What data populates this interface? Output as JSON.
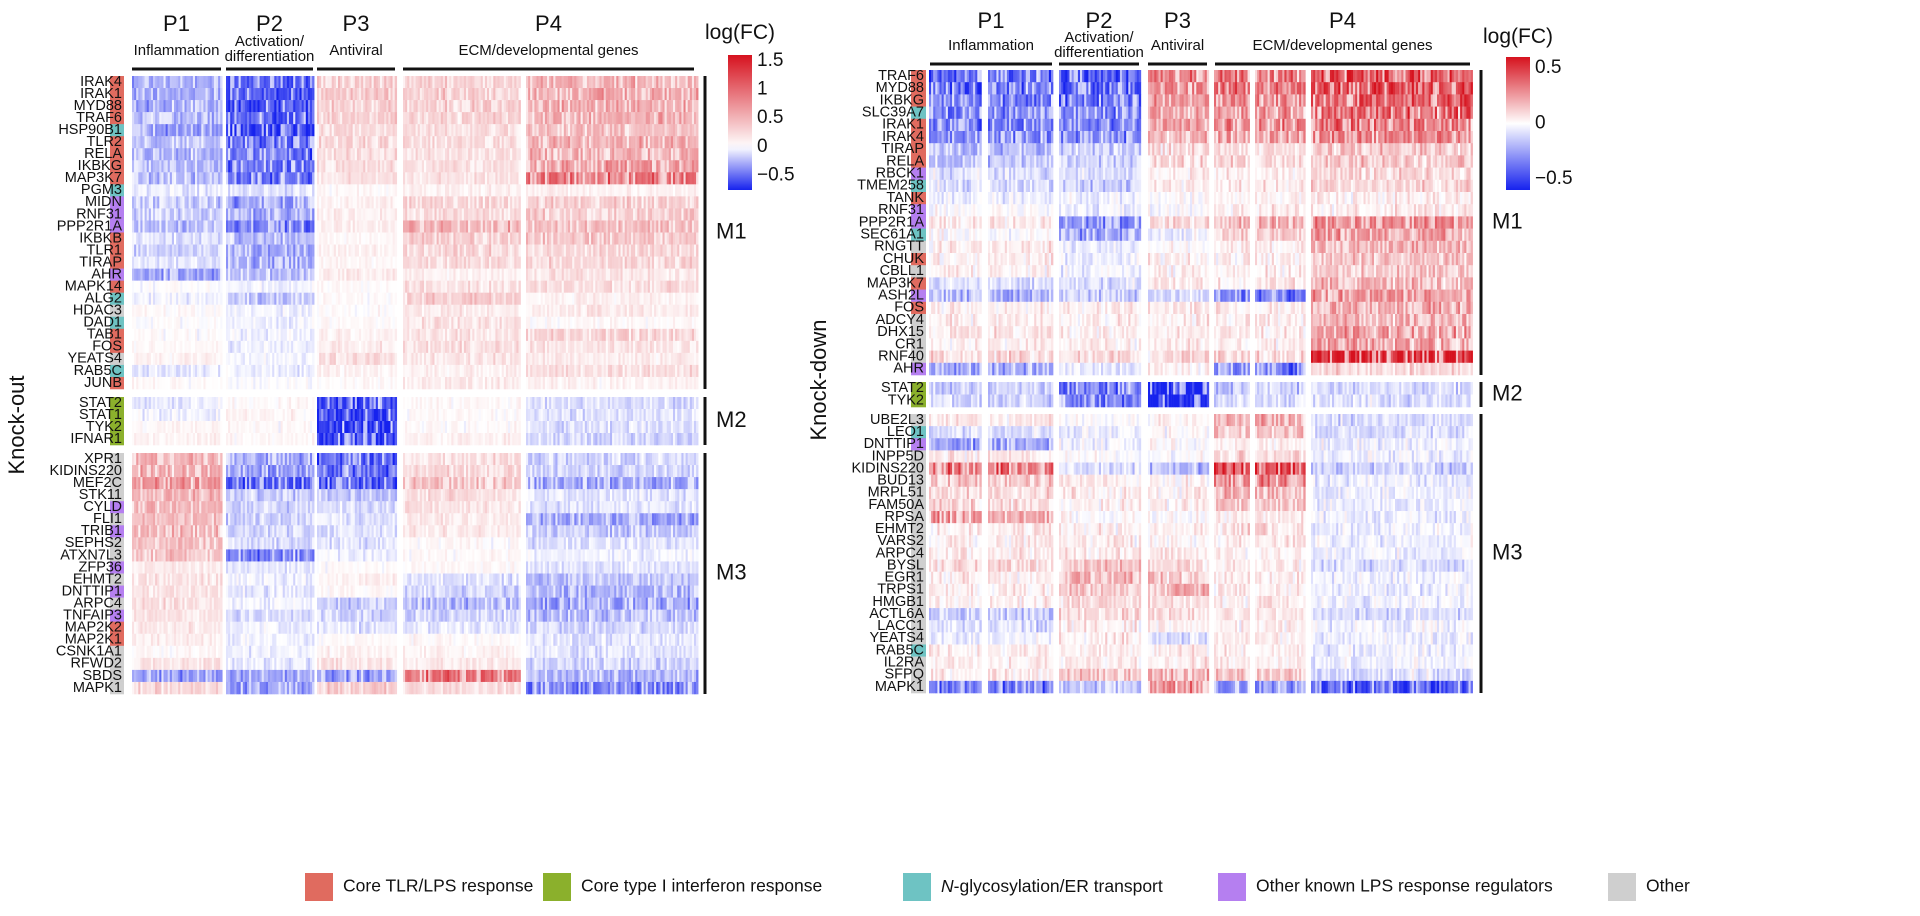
{
  "chart_data": {
    "type": "heatmap",
    "category_colors": {
      "tlr": "#e06b5f",
      "ifn": "#8bb02c",
      "glyco": "#6ec3c3",
      "reg": "#b57ff0",
      "other": "#cfcfcf"
    },
    "legend": [
      {
        "key": "tlr",
        "label": "Core TLR/LPS response"
      },
      {
        "key": "ifn",
        "label": "Core type I interferon response"
      },
      {
        "key": "glyco",
        "label": "N-glycosylation/ER transport",
        "italic_prefix": "N"
      },
      {
        "key": "reg",
        "label": "Other known LPS response regulators"
      },
      {
        "key": "other",
        "label": "Other"
      }
    ],
    "programs": [
      {
        "id": "P1",
        "title": "P1",
        "subtitle": [
          "Inflammation"
        ]
      },
      {
        "id": "P2",
        "title": "P2",
        "subtitle": [
          "Activation/",
          "differentiation"
        ]
      },
      {
        "id": "P3",
        "title": "P3",
        "subtitle": [
          "Antiviral"
        ]
      },
      {
        "id": "P4",
        "title": "P4",
        "subtitle": [
          "ECM/developmental genes"
        ]
      }
    ],
    "panels": [
      {
        "name": "Knock-out",
        "ylabel": "Knock-out",
        "colorbar": {
          "title": "log(FC)",
          "vmin": -0.75,
          "vmax": 1.6,
          "ticks": [
            1.5,
            1,
            0.5,
            0,
            -0.5
          ],
          "tick_labels": [
            "1.5",
            "1",
            "0.5",
            "0",
            "−0.5"
          ]
        },
        "modules": [
          {
            "name": "M1",
            "genes": [
              "IRAK4",
              "IRAK1",
              "MYD88",
              "TRAF6",
              "HSP90B1",
              "TLR2",
              "RELA",
              "IKBKG",
              "MAP3K7",
              "PGM3",
              "MIDN",
              "RNF31",
              "PPP2R1A",
              "IKBKB",
              "TLR1",
              "TIRAP",
              "AHR",
              "MAPK14",
              "ALG2",
              "HDAC3",
              "DAD1",
              "TAB1",
              "FOS",
              "YEATS4",
              "RAB5C",
              "JUNB"
            ],
            "categories": [
              "tlr",
              "tlr",
              "tlr",
              "tlr",
              "glyco",
              "tlr",
              "tlr",
              "tlr",
              "tlr",
              "glyco",
              "reg",
              "reg",
              "reg",
              "tlr",
              "tlr",
              "tlr",
              "reg",
              "tlr",
              "glyco",
              "other",
              "glyco",
              "tlr",
              "tlr",
              "other",
              "glyco",
              "tlr"
            ],
            "values": {
              "P1": [
                -0.3,
                -0.28,
                -0.3,
                -0.25,
                -0.35,
                -0.22,
                -0.25,
                -0.25,
                -0.25,
                -0.1,
                -0.2,
                -0.15,
                -0.22,
                -0.12,
                -0.15,
                -0.1,
                -0.3,
                0.02,
                -0.05,
                0.03,
                0.02,
                0.03,
                0.05,
                0.1,
                -0.1,
                0.05
              ],
              "P2": [
                -0.55,
                -0.55,
                -0.58,
                -0.55,
                -0.65,
                -0.5,
                -0.48,
                -0.48,
                -0.45,
                -0.1,
                -0.35,
                -0.3,
                -0.45,
                -0.25,
                -0.3,
                -0.3,
                -0.2,
                -0.05,
                -0.2,
                -0.05,
                -0.05,
                -0.05,
                -0.08,
                -0.05,
                -0.05,
                0.0
              ],
              "P3": [
                0.35,
                0.38,
                0.35,
                0.33,
                0.25,
                0.28,
                0.25,
                0.25,
                0.2,
                0.05,
                0.1,
                0.12,
                0.15,
                0.05,
                0.12,
                0.08,
                0.15,
                0.05,
                0.05,
                0.02,
                0.05,
                0.1,
                0.15,
                0.25,
                0.1,
                0.05
              ],
              "P4a": [
                0.3,
                0.35,
                0.35,
                0.3,
                0.25,
                0.25,
                0.22,
                0.22,
                0.2,
                0.1,
                0.3,
                0.25,
                0.55,
                0.35,
                0.3,
                0.25,
                0.1,
                0.2,
                0.35,
                0.15,
                0.2,
                0.2,
                0.25,
                0.2,
                0.1,
                0.15
              ],
              "P4b": [
                0.55,
                0.6,
                0.58,
                0.55,
                0.45,
                0.55,
                0.55,
                0.65,
                0.95,
                0.1,
                0.35,
                0.35,
                0.45,
                0.4,
                0.3,
                0.3,
                0.2,
                0.25,
                0.1,
                0.15,
                0.05,
                0.3,
                0.2,
                0.15,
                0.25,
                0.1
              ]
            }
          },
          {
            "name": "M2",
            "genes": [
              "STAT2",
              "STAT1",
              "TYK2",
              "IFNAR1"
            ],
            "categories": [
              "ifn",
              "ifn",
              "ifn",
              "ifn"
            ],
            "values": {
              "P1": [
                -0.08,
                -0.05,
                0.05,
                0.1
              ],
              "P2": [
                0.05,
                0.08,
                0.05,
                0.05
              ],
              "P3": [
                -0.6,
                -0.7,
                -0.7,
                -0.65
              ],
              "P4a": [
                0.05,
                0.05,
                0.05,
                0.1
              ],
              "P4b": [
                -0.12,
                -0.1,
                -0.12,
                -0.15
              ]
            }
          },
          {
            "name": "M3",
            "genes": [
              "XPR1",
              "KIDINS220",
              "MEF2C",
              "STK11",
              "CYLD",
              "FLI1",
              "TRIB1",
              "SEPHS2",
              "ATXN7L3",
              "ZFP36",
              "EHMT2",
              "DNTTIP1",
              "ARPC4",
              "TNFAIP3",
              "MAP2K2",
              "MAP2K1",
              "CSNK1A1",
              "RFWD2",
              "SBDS",
              "MAPK1"
            ],
            "categories": [
              "other",
              "other",
              "other",
              "other",
              "reg",
              "other",
              "reg",
              "other",
              "other",
              "reg",
              "other",
              "reg",
              "other",
              "reg",
              "tlr",
              "tlr",
              "other",
              "other",
              "other",
              "other"
            ],
            "values": {
              "P1": [
                0.55,
                0.55,
                0.75,
                0.5,
                0.5,
                0.45,
                0.5,
                0.4,
                0.4,
                0.15,
                0.2,
                0.2,
                0.25,
                0.2,
                0.15,
                0.15,
                0.05,
                0.2,
                -0.35,
                0.3
              ],
              "P2": [
                -0.3,
                -0.35,
                -0.55,
                -0.2,
                -0.15,
                -0.15,
                -0.15,
                -0.15,
                -0.45,
                -0.1,
                -0.05,
                -0.1,
                -0.05,
                -0.15,
                -0.05,
                -0.05,
                -0.05,
                -0.1,
                -0.3,
                -0.35
              ],
              "P3": [
                -0.55,
                -0.5,
                -0.55,
                -0.2,
                -0.15,
                -0.1,
                -0.1,
                -0.1,
                -0.05,
                0.05,
                0.1,
                0.05,
                -0.2,
                -0.15,
                -0.1,
                0.05,
                0.1,
                0.2,
                -0.35,
                0.35
              ],
              "P4a": [
                0.25,
                0.3,
                0.45,
                0.25,
                0.2,
                0.15,
                0.15,
                0.05,
                0.05,
                0.05,
                -0.1,
                -0.15,
                -0.25,
                -0.15,
                -0.1,
                0.05,
                0.1,
                0.15,
                0.95,
                0.25
              ],
              "P4b": [
                -0.15,
                -0.15,
                -0.3,
                -0.1,
                -0.1,
                -0.3,
                -0.2,
                -0.1,
                -0.05,
                -0.1,
                -0.2,
                -0.25,
                -0.3,
                -0.25,
                -0.15,
                -0.1,
                -0.1,
                -0.15,
                -0.25,
                -0.45
              ]
            }
          }
        ]
      },
      {
        "name": "Knock-down",
        "ylabel": "Knock-down",
        "colorbar": {
          "title": "log(FC)",
          "vmin": -0.6,
          "vmax": 0.6,
          "ticks": [
            0.5,
            0,
            -0.5
          ],
          "tick_labels": [
            "0.5",
            "0",
            "−0.5"
          ]
        },
        "modules": [
          {
            "name": "M1",
            "genes": [
              "TRAF6",
              "MYD88",
              "IKBKG",
              "SLC39A7",
              "IRAK1",
              "IRAK4",
              "TIRAP",
              "RELA",
              "RBCK1",
              "TMEM258",
              "TANK",
              "RNF31",
              "PPP2R1A",
              "SEC61A1",
              "RNGTT",
              "CHUK",
              "CBLL1",
              "MAP3K7",
              "ASH2L",
              "FOS",
              "ADCY4",
              "DHX15",
              "CR1",
              "RNF40",
              "AHR"
            ],
            "categories": [
              "tlr",
              "tlr",
              "tlr",
              "glyco",
              "tlr",
              "tlr",
              "tlr",
              "tlr",
              "reg",
              "glyco",
              "tlr",
              "reg",
              "reg",
              "glyco",
              "other",
              "tlr",
              "other",
              "tlr",
              "reg",
              "tlr",
              "other",
              "other",
              "other",
              "other",
              "reg"
            ],
            "values": {
              "P1": [
                -0.4,
                -0.4,
                -0.38,
                -0.35,
                -0.35,
                -0.3,
                -0.2,
                -0.15,
                -0.1,
                -0.1,
                -0.05,
                0.0,
                0.05,
                0.0,
                0.05,
                0.05,
                0.05,
                -0.1,
                -0.2,
                0.05,
                0.05,
                0.05,
                0.05,
                0.1,
                -0.25
              ],
              "P2": [
                -0.45,
                -0.45,
                -0.4,
                -0.35,
                -0.35,
                -0.3,
                -0.15,
                -0.15,
                -0.1,
                -0.15,
                -0.05,
                -0.05,
                -0.3,
                -0.25,
                -0.05,
                -0.05,
                -0.05,
                -0.1,
                -0.15,
                0.05,
                0.05,
                0.05,
                0.05,
                0.1,
                -0.05
              ],
              "P3": [
                0.3,
                0.3,
                0.25,
                0.25,
                0.25,
                0.2,
                0.1,
                0.1,
                0.05,
                0.05,
                0.0,
                0.0,
                0.1,
                -0.05,
                0.0,
                0.05,
                0.05,
                0.05,
                -0.1,
                0.05,
                0.05,
                0.05,
                0.05,
                0.1,
                0.05
              ],
              "P4a": [
                0.35,
                0.35,
                0.3,
                0.3,
                0.3,
                0.25,
                0.1,
                0.1,
                0.05,
                0.05,
                0.05,
                0.05,
                0.2,
                0.15,
                0.05,
                0.05,
                0.05,
                0.05,
                -0.35,
                0.05,
                0.05,
                0.05,
                0.05,
                0.1,
                -0.35
              ],
              "P4b": [
                0.45,
                0.45,
                0.4,
                0.4,
                0.35,
                0.3,
                0.15,
                0.15,
                0.1,
                0.1,
                0.05,
                0.05,
                0.3,
                0.25,
                0.2,
                0.15,
                0.15,
                0.2,
                0.25,
                0.25,
                0.2,
                0.25,
                0.25,
                0.55,
                0.1
              ]
            }
          },
          {
            "name": "M2",
            "genes": [
              "STAT2",
              "TYK2"
            ],
            "categories": [
              "ifn",
              "ifn"
            ],
            "values": {
              "P1": [
                -0.15,
                -0.15
              ],
              "P2": [
                -0.35,
                -0.35
              ],
              "P3": [
                -0.6,
                -0.6
              ],
              "P4a": [
                -0.15,
                -0.1
              ],
              "P4b": [
                -0.1,
                -0.1
              ]
            }
          },
          {
            "name": "M3",
            "genes": [
              "UBE2L3",
              "LEO1",
              "DNTTIP1",
              "INPP5D",
              "KIDINS220",
              "BUD13",
              "MRPL51",
              "FAM50A",
              "RPSA",
              "EHMT2",
              "VARS2",
              "ARPC4",
              "BYSL",
              "EGR1",
              "TRPS1",
              "HMGB1",
              "ACTL6A",
              "LACC1",
              "YEATS4",
              "RAB5C",
              "IL2RA",
              "SFPQ",
              "MAPK1"
            ],
            "categories": [
              "other",
              "glyco",
              "reg",
              "other",
              "other",
              "other",
              "other",
              "other",
              "other",
              "other",
              "other",
              "other",
              "other",
              "other",
              "other",
              "other",
              "other",
              "other",
              "other",
              "glyco",
              "other",
              "other",
              "other"
            ],
            "values": {
              "P1": [
                0.05,
                -0.1,
                -0.25,
                0.05,
                0.35,
                0.15,
                0.1,
                0.1,
                0.25,
                0.05,
                0.05,
                0.05,
                0.1,
                0.05,
                0.05,
                0.05,
                -0.15,
                -0.1,
                -0.05,
                0.05,
                0.05,
                0.05,
                -0.35
              ],
              "P2": [
                0.0,
                -0.05,
                -0.05,
                0.0,
                -0.1,
                0.05,
                0.05,
                0.05,
                0.0,
                0.05,
                0.05,
                0.05,
                0.15,
                0.2,
                0.15,
                0.1,
                0.1,
                0.05,
                0.05,
                0.05,
                0.05,
                0.15,
                -0.15
              ],
              "P3": [
                0.05,
                0.0,
                0.0,
                0.0,
                -0.2,
                0.05,
                0.05,
                0.05,
                0.0,
                0.05,
                0.05,
                0.05,
                0.1,
                0.15,
                0.2,
                0.1,
                0.1,
                0.05,
                -0.1,
                0.05,
                0.05,
                0.2,
                0.25
              ],
              "P4a": [
                0.25,
                0.15,
                0.05,
                0.1,
                0.45,
                0.3,
                0.2,
                0.15,
                0.05,
                0.1,
                0.05,
                0.05,
                0.05,
                0.05,
                0.05,
                0.05,
                0.05,
                0.05,
                0.05,
                0.05,
                0.05,
                0.15,
                -0.3
              ],
              "P4b": [
                -0.1,
                -0.1,
                -0.05,
                -0.05,
                -0.15,
                -0.05,
                -0.05,
                -0.05,
                -0.05,
                -0.05,
                -0.05,
                -0.05,
                -0.1,
                -0.05,
                -0.05,
                -0.05,
                -0.1,
                -0.05,
                -0.05,
                -0.05,
                -0.05,
                -0.1,
                -0.45
              ]
            }
          }
        ]
      }
    ]
  }
}
